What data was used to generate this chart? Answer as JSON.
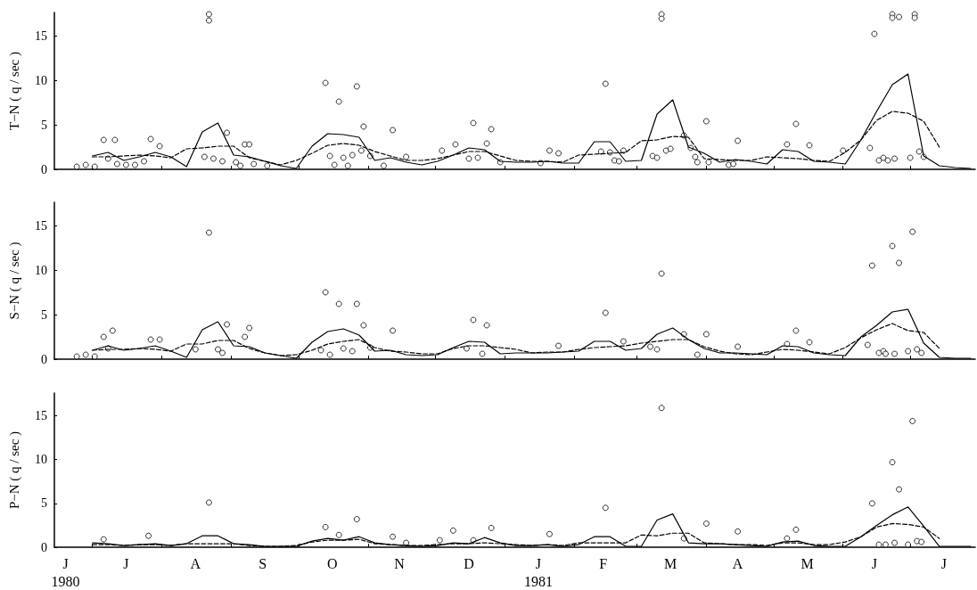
{
  "chart_data": [
    {
      "type": "line",
      "ylabel": "T−N ( q / sec )",
      "tick_labels": "y",
      "xlim": [
        "1980-06-14",
        "1981-07-30"
      ],
      "ylim": [
        0,
        17.6
      ],
      "yticks": [
        0,
        5,
        10,
        15
      ],
      "xticks": [
        {
          "value": "1980-07-01",
          "label": null
        },
        {
          "value": "1980-08-01",
          "label": null
        },
        {
          "value": "1980-09-01",
          "label": null
        },
        {
          "value": "1980-10-01",
          "label": null
        },
        {
          "value": "1980-11-01",
          "label": null
        },
        {
          "value": "1980-12-01",
          "label": null
        },
        {
          "value": "1981-01-01",
          "label": null
        },
        {
          "value": "1981-02-01",
          "label": null
        },
        {
          "value": "1981-03-01",
          "label": null
        },
        {
          "value": "1981-04-01",
          "label": null
        },
        {
          "value": "1981-05-01",
          "label": null
        },
        {
          "value": "1981-06-01",
          "label": null
        },
        {
          "value": "1981-07-01",
          "label": null
        }
      ],
      "x": [
        "1980-07-01",
        "1980-07-08",
        "1980-07-15",
        "1980-07-22",
        "1980-07-29",
        "1980-08-05",
        "1980-08-12",
        "1980-08-19",
        "1980-08-26",
        "1980-09-02",
        "1980-09-09",
        "1980-09-16",
        "1980-09-23",
        "1980-09-30",
        "1980-10-07",
        "1980-10-14",
        "1980-10-21",
        "1980-10-28",
        "1980-11-04",
        "1980-11-11",
        "1980-11-18",
        "1980-11-25",
        "1980-12-02",
        "1980-12-09",
        "1980-12-16",
        "1980-12-23",
        "1980-12-30",
        "1981-01-06",
        "1981-01-13",
        "1981-01-20",
        "1981-01-27",
        "1981-02-03",
        "1981-02-10",
        "1981-02-17",
        "1981-02-24",
        "1981-03-03",
        "1981-03-10",
        "1981-03-17",
        "1981-03-24",
        "1981-03-31",
        "1981-04-07",
        "1981-04-14",
        "1981-04-21",
        "1981-04-28",
        "1981-05-05",
        "1981-05-12",
        "1981-05-19",
        "1981-05-26",
        "1981-06-02",
        "1981-06-09",
        "1981-06-16",
        "1981-06-23",
        "1981-06-30",
        "1981-07-07",
        "1981-07-14",
        "1981-07-21",
        "1981-07-28"
      ],
      "series": [
        {
          "type": "line",
          "color": "#000000",
          "line_style": "solid",
          "marker": "none",
          "values": [
            1.5,
            1.9,
            1.0,
            1.4,
            1.9,
            1.4,
            0.3,
            4.2,
            5.2,
            1.6,
            1.4,
            0.9,
            0.4,
            0.1,
            2.6,
            4.0,
            3.9,
            3.6,
            1.0,
            1.3,
            0.8,
            0.5,
            0.9,
            1.6,
            2.4,
            2.2,
            0.9,
            0.8,
            0.8,
            0.9,
            0.7,
            0.7,
            3.1,
            3.1,
            0.9,
            1.0,
            6.2,
            7.8,
            2.5,
            1.8,
            0.8,
            1.1,
            0.9,
            0.6,
            2.2,
            2.0,
            0.9,
            0.8,
            0.6,
            3.3,
            6.5,
            9.5,
            10.7,
            1.5,
            0.4,
            0.2,
            0.1
          ]
        },
        {
          "type": "line",
          "color": "#000000",
          "line_style": "dashed",
          "marker": "none",
          "values": [
            1.4,
            1.4,
            1.5,
            1.6,
            1.5,
            1.3,
            2.3,
            2.4,
            2.6,
            2.6,
            1.3,
            0.9,
            0.5,
            1.0,
            1.8,
            2.7,
            2.9,
            2.7,
            2.0,
            1.5,
            1.0,
            1.0,
            1.2,
            1.6,
            2.0,
            2.0,
            1.5,
            1.0,
            0.9,
            0.9,
            0.8,
            1.6,
            1.7,
            1.8,
            1.9,
            3.2,
            3.3,
            3.7,
            3.6,
            1.2,
            1.1,
            1.0,
            1.0,
            1.4,
            1.3,
            1.2,
            1.0,
            0.9,
            1.9,
            3.3,
            5.5,
            6.5,
            6.3,
            5.4,
            2.5,
            null,
            null
          ]
        },
        {
          "type": "scatter",
          "color": "#000000",
          "marker": "circle",
          "x": [
            "1980-06-24",
            "1980-06-28",
            "1980-07-02",
            "1980-07-06",
            "1980-07-08",
            "1980-07-11",
            "1980-07-12",
            "1980-07-16",
            "1980-07-20",
            "1980-07-24",
            "1980-07-27",
            "1980-07-31",
            "1980-08-20",
            "1980-08-22",
            "1980-08-22",
            "1980-08-24",
            "1980-08-28",
            "1980-08-30",
            "1980-09-03",
            "1980-09-05",
            "1980-09-07",
            "1980-09-09",
            "1980-09-11",
            "1980-09-17",
            "1980-10-13",
            "1980-10-15",
            "1980-10-17",
            "1980-10-19",
            "1980-10-21",
            "1980-10-23",
            "1980-10-25",
            "1980-10-27",
            "1980-10-29",
            "1980-10-30",
            "1980-11-02",
            "1980-11-08",
            "1980-11-12",
            "1980-11-18",
            "1980-12-04",
            "1980-12-10",
            "1980-12-16",
            "1980-12-18",
            "1980-12-20",
            "1980-12-24",
            "1980-12-26",
            "1980-12-30",
            "1981-01-17",
            "1981-01-21",
            "1981-01-25",
            "1981-02-13",
            "1981-02-15",
            "1981-02-17",
            "1981-02-19",
            "1981-02-21",
            "1981-02-23",
            "1981-03-08",
            "1981-03-10",
            "1981-03-12",
            "1981-03-12",
            "1981-03-14",
            "1981-03-16",
            "1981-03-22",
            "1981-03-25",
            "1981-03-27",
            "1981-03-28",
            "1981-04-01",
            "1981-04-02",
            "1981-04-11",
            "1981-04-13",
            "1981-04-15",
            "1981-05-07",
            "1981-05-11",
            "1981-05-17",
            "1981-06-01",
            "1981-06-13",
            "1981-06-15",
            "1981-06-17",
            "1981-06-19",
            "1981-06-21",
            "1981-06-23",
            "1981-06-23",
            "1981-06-24",
            "1981-06-26",
            "1981-07-01",
            "1981-07-03",
            "1981-07-03",
            "1981-07-05",
            "1981-07-07"
          ],
          "values": [
            0.3,
            0.5,
            0.3,
            3.3,
            1.2,
            3.3,
            0.6,
            0.5,
            0.5,
            0.9,
            3.4,
            2.6,
            1.4,
            17.4,
            16.7,
            1.2,
            0.9,
            4.1,
            0.8,
            0.4,
            2.8,
            2.8,
            0.6,
            0.4,
            9.7,
            1.5,
            0.5,
            7.6,
            1.3,
            0.4,
            1.6,
            9.3,
            2.1,
            4.8,
            1.5,
            0.4,
            4.4,
            1.4,
            2.1,
            2.8,
            1.2,
            5.2,
            1.3,
            2.9,
            4.5,
            0.8,
            0.7,
            2.1,
            1.8,
            2.0,
            9.6,
            1.9,
            1.0,
            0.9,
            2.1,
            1.5,
            1.3,
            17.4,
            16.9,
            2.1,
            2.3,
            3.8,
            2.4,
            1.4,
            0.8,
            5.4,
            0.8,
            0.5,
            0.6,
            3.2,
            2.8,
            5.1,
            2.7,
            2.1,
            2.4,
            15.2,
            1.0,
            1.3,
            1.0,
            17.4,
            17.0,
            1.2,
            17.1,
            1.3,
            17.4,
            17.0,
            2.0,
            1.4
          ]
        }
      ]
    },
    {
      "type": "line",
      "ylabel": "S−N ( q / sec )",
      "tick_labels": "y",
      "xlim": [
        "1980-06-14",
        "1981-07-30"
      ],
      "ylim": [
        0,
        17.6
      ],
      "yticks": [
        0,
        5,
        10,
        15
      ],
      "xticks": [
        {
          "value": "1980-07-01",
          "label": null
        },
        {
          "value": "1980-08-01",
          "label": null
        },
        {
          "value": "1980-09-01",
          "label": null
        },
        {
          "value": "1980-10-01",
          "label": null
        },
        {
          "value": "1980-11-01",
          "label": null
        },
        {
          "value": "1980-12-01",
          "label": null
        },
        {
          "value": "1981-01-01",
          "label": null
        },
        {
          "value": "1981-02-01",
          "label": null
        },
        {
          "value": "1981-03-01",
          "label": null
        },
        {
          "value": "1981-04-01",
          "label": null
        },
        {
          "value": "1981-05-01",
          "label": null
        },
        {
          "value": "1981-06-01",
          "label": null
        },
        {
          "value": "1981-07-01",
          "label": null
        }
      ],
      "x": [
        "1980-07-01",
        "1980-07-08",
        "1980-07-15",
        "1980-07-22",
        "1980-07-29",
        "1980-08-05",
        "1980-08-12",
        "1980-08-19",
        "1980-08-26",
        "1980-09-02",
        "1980-09-09",
        "1980-09-16",
        "1980-09-23",
        "1980-09-30",
        "1980-10-07",
        "1980-10-14",
        "1980-10-21",
        "1980-10-28",
        "1980-11-04",
        "1980-11-11",
        "1980-11-18",
        "1980-11-25",
        "1980-12-02",
        "1980-12-09",
        "1980-12-16",
        "1980-12-23",
        "1980-12-30",
        "1981-01-06",
        "1981-01-13",
        "1981-01-20",
        "1981-01-27",
        "1981-02-03",
        "1981-02-10",
        "1981-02-17",
        "1981-02-24",
        "1981-03-03",
        "1981-03-10",
        "1981-03-17",
        "1981-03-24",
        "1981-03-31",
        "1981-04-07",
        "1981-04-14",
        "1981-04-21",
        "1981-04-28",
        "1981-05-05",
        "1981-05-12",
        "1981-05-19",
        "1981-05-26",
        "1981-06-02",
        "1981-06-09",
        "1981-06-16",
        "1981-06-23",
        "1981-06-30",
        "1981-07-07",
        "1981-07-14",
        "1981-07-21",
        "1981-07-28"
      ],
      "series": [
        {
          "type": "line",
          "color": "#000000",
          "line_style": "solid",
          "marker": "none",
          "values": [
            1.0,
            1.5,
            1.0,
            1.2,
            1.5,
            0.9,
            0.2,
            3.3,
            4.2,
            1.5,
            1.4,
            0.7,
            0.4,
            0.1,
            1.9,
            3.1,
            3.4,
            2.7,
            0.9,
            1.0,
            0.5,
            0.4,
            0.5,
            1.3,
            2.0,
            1.9,
            0.6,
            0.7,
            0.7,
            0.7,
            0.8,
            0.9,
            2.0,
            2.0,
            1.0,
            1.2,
            2.8,
            3.5,
            2.2,
            1.2,
            0.7,
            0.7,
            0.6,
            0.5,
            1.5,
            1.4,
            0.7,
            0.5,
            0.4,
            2.5,
            3.8,
            5.3,
            5.6,
            1.8,
            0.2,
            0.1,
            0.1
          ]
        },
        {
          "type": "line",
          "color": "#000000",
          "line_style": "dashed",
          "marker": "none",
          "values": [
            1.0,
            1.1,
            1.1,
            1.2,
            1.1,
            0.9,
            1.7,
            1.7,
            2.1,
            2.1,
            1.2,
            0.7,
            0.4,
            0.5,
            1.0,
            1.7,
            2.0,
            2.2,
            1.3,
            0.9,
            0.8,
            0.6,
            0.6,
            1.2,
            1.5,
            1.5,
            1.3,
            1.1,
            0.7,
            0.8,
            0.8,
            1.1,
            1.3,
            1.4,
            1.5,
            1.8,
            2.0,
            2.2,
            2.2,
            1.4,
            0.9,
            0.6,
            0.5,
            0.8,
            1.1,
            1.0,
            0.8,
            0.6,
            1.3,
            2.4,
            3.3,
            4.0,
            3.2,
            3.0,
            1.2,
            null,
            null
          ]
        },
        {
          "type": "scatter",
          "color": "#000000",
          "marker": "circle",
          "x": [
            "1980-06-24",
            "1980-06-28",
            "1980-07-02",
            "1980-07-06",
            "1980-07-08",
            "1980-07-10",
            "1980-07-27",
            "1980-07-31",
            "1980-08-16",
            "1980-08-22",
            "1980-08-26",
            "1980-08-28",
            "1980-08-30",
            "1980-09-07",
            "1980-09-09",
            "1980-10-11",
            "1980-10-13",
            "1980-10-15",
            "1980-10-19",
            "1980-10-21",
            "1980-10-25",
            "1980-10-27",
            "1980-10-30",
            "1980-11-02",
            "1980-11-12",
            "1980-12-15",
            "1980-12-18",
            "1980-12-22",
            "1980-12-24",
            "1981-01-25",
            "1981-02-15",
            "1981-02-23",
            "1981-03-07",
            "1981-03-10",
            "1981-03-12",
            "1981-03-22",
            "1981-03-28",
            "1981-04-01",
            "1981-04-15",
            "1981-05-07",
            "1981-05-11",
            "1981-05-17",
            "1981-06-12",
            "1981-06-14",
            "1981-06-17",
            "1981-06-19",
            "1981-06-20",
            "1981-06-23",
            "1981-06-24",
            "1981-06-26",
            "1981-06-30",
            "1981-07-02",
            "1981-07-04",
            "1981-07-06"
          ],
          "values": [
            0.3,
            0.5,
            0.3,
            2.5,
            1.2,
            3.2,
            2.2,
            2.2,
            1.1,
            14.2,
            1.1,
            0.7,
            3.9,
            2.5,
            3.5,
            1.0,
            7.5,
            0.5,
            6.2,
            1.2,
            0.9,
            6.2,
            3.8,
            1.3,
            3.2,
            1.2,
            4.4,
            0.6,
            3.8,
            1.5,
            5.2,
            2.0,
            1.4,
            1.1,
            9.6,
            2.8,
            0.5,
            2.8,
            1.4,
            1.7,
            3.2,
            1.9,
            1.6,
            10.5,
            0.7,
            0.9,
            0.6,
            12.7,
            0.6,
            10.8,
            0.9,
            14.3,
            1.1,
            0.7
          ]
        }
      ]
    },
    {
      "type": "line",
      "ylabel": "P−N ( q / sec )",
      "xlim": [
        "1980-06-14",
        "1981-07-30"
      ],
      "ylim": [
        0,
        17.6
      ],
      "yticks": [
        0,
        5,
        10,
        15
      ],
      "xticks": [
        {
          "value": "1980-06-19",
          "label": "J\n1980"
        },
        {
          "value": "1980-07-01",
          "label": null
        },
        {
          "value": "1980-07-16",
          "label": "J"
        },
        {
          "value": "1980-08-01",
          "label": null
        },
        {
          "value": "1980-08-16",
          "label": "A"
        },
        {
          "value": "1980-09-01",
          "label": null
        },
        {
          "value": "1980-09-15",
          "label": "S"
        },
        {
          "value": "1980-10-01",
          "label": null
        },
        {
          "value": "1980-10-16",
          "label": "O"
        },
        {
          "value": "1980-11-01",
          "label": null
        },
        {
          "value": "1980-11-15",
          "label": "N"
        },
        {
          "value": "1980-12-01",
          "label": null
        },
        {
          "value": "1980-12-16",
          "label": "D"
        },
        {
          "value": "1981-01-01",
          "label": null
        },
        {
          "value": "1981-01-16",
          "label": "J\n1981"
        },
        {
          "value": "1981-02-01",
          "label": null
        },
        {
          "value": "1981-02-14",
          "label": "F"
        },
        {
          "value": "1981-03-01",
          "label": null
        },
        {
          "value": "1981-03-16",
          "label": "M"
        },
        {
          "value": "1981-04-01",
          "label": null
        },
        {
          "value": "1981-04-15",
          "label": "A"
        },
        {
          "value": "1981-05-01",
          "label": null
        },
        {
          "value": "1981-05-16",
          "label": "M"
        },
        {
          "value": "1981-06-01",
          "label": null
        },
        {
          "value": "1981-06-15",
          "label": "J"
        },
        {
          "value": "1981-07-01",
          "label": null
        },
        {
          "value": "1981-07-16",
          "label": "J"
        }
      ],
      "x": [
        "1980-07-01",
        "1980-07-08",
        "1980-07-15",
        "1980-07-22",
        "1980-07-29",
        "1980-08-05",
        "1980-08-12",
        "1980-08-19",
        "1980-08-26",
        "1980-09-02",
        "1980-09-09",
        "1980-09-16",
        "1980-09-23",
        "1980-09-30",
        "1980-10-07",
        "1980-10-14",
        "1980-10-21",
        "1980-10-28",
        "1980-11-04",
        "1980-11-11",
        "1980-11-18",
        "1980-11-25",
        "1980-12-02",
        "1980-12-09",
        "1980-12-16",
        "1980-12-23",
        "1980-12-30",
        "1981-01-06",
        "1981-01-13",
        "1981-01-20",
        "1981-01-27",
        "1981-02-03",
        "1981-02-10",
        "1981-02-17",
        "1981-02-24",
        "1981-03-03",
        "1981-03-10",
        "1981-03-17",
        "1981-03-24",
        "1981-03-31",
        "1981-04-07",
        "1981-04-14",
        "1981-04-21",
        "1981-04-28",
        "1981-05-05",
        "1981-05-12",
        "1981-05-19",
        "1981-05-26",
        "1981-06-02",
        "1981-06-09",
        "1981-06-16",
        "1981-06-23",
        "1981-06-30",
        "1981-07-07",
        "1981-07-14",
        "1981-07-21",
        "1981-07-28"
      ],
      "series": [
        {
          "type": "line",
          "color": "#000000",
          "line_style": "solid",
          "marker": "none",
          "values": [
            0.5,
            0.4,
            0.2,
            0.3,
            0.4,
            0.2,
            0.4,
            1.3,
            1.3,
            0.4,
            0.3,
            0.1,
            0.1,
            0.1,
            0.7,
            1.0,
            0.8,
            1.2,
            0.5,
            0.3,
            0.2,
            0.1,
            0.2,
            0.5,
            0.4,
            1.1,
            0.5,
            0.2,
            0.2,
            0.3,
            0.1,
            0.3,
            1.2,
            1.2,
            0.1,
            0.1,
            3.1,
            3.8,
            0.5,
            0.4,
            0.4,
            0.3,
            0.2,
            0.1,
            0.6,
            0.7,
            0.2,
            0.1,
            0.1,
            1.2,
            2.5,
            3.7,
            4.6,
            2.4,
            0.1,
            0.1,
            0.1
          ]
        },
        {
          "type": "line",
          "color": "#000000",
          "line_style": "dashed",
          "marker": "none",
          "values": [
            0.3,
            0.3,
            0.2,
            0.3,
            0.3,
            0.2,
            0.4,
            0.4,
            0.4,
            0.4,
            0.2,
            0.1,
            0.1,
            0.2,
            0.6,
            0.8,
            0.8,
            0.9,
            0.4,
            0.3,
            0.2,
            0.2,
            0.3,
            0.4,
            0.4,
            0.5,
            0.4,
            0.3,
            0.2,
            0.3,
            0.2,
            0.5,
            0.5,
            0.5,
            0.5,
            1.4,
            1.3,
            1.6,
            1.6,
            0.5,
            0.4,
            0.3,
            0.3,
            0.2,
            0.5,
            0.5,
            0.3,
            0.3,
            0.6,
            1.2,
            2.3,
            2.7,
            2.6,
            2.3,
            1.0,
            null,
            null
          ]
        },
        {
          "type": "scatter",
          "color": "#000000",
          "marker": "circle",
          "x": [
            "1980-07-06",
            "1980-07-26",
            "1980-08-22",
            "1980-10-13",
            "1980-10-19",
            "1980-10-27",
            "1980-11-12",
            "1980-11-18",
            "1980-12-03",
            "1980-12-09",
            "1980-12-18",
            "1980-12-26",
            "1981-01-21",
            "1981-02-15",
            "1981-03-12",
            "1981-03-22",
            "1981-04-01",
            "1981-04-15",
            "1981-05-07",
            "1981-05-11",
            "1981-06-14",
            "1981-06-17",
            "1981-06-20",
            "1981-06-23",
            "1981-06-24",
            "1981-06-26",
            "1981-06-30",
            "1981-07-02",
            "1981-07-04",
            "1981-07-06"
          ],
          "values": [
            0.9,
            1.3,
            5.1,
            2.3,
            1.4,
            3.2,
            1.2,
            0.5,
            0.8,
            1.9,
            0.8,
            2.2,
            1.5,
            4.5,
            15.9,
            1.0,
            2.7,
            1.8,
            1.0,
            2.0,
            5.0,
            0.3,
            0.3,
            9.7,
            0.5,
            6.6,
            0.3,
            14.4,
            0.7,
            0.6
          ]
        }
      ]
    }
  ]
}
